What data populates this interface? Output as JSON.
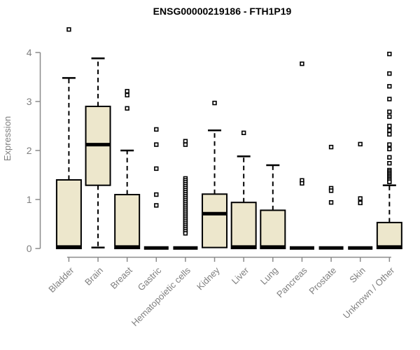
{
  "colors": {
    "box_fill": "#EDE7CC",
    "line": "#000000",
    "axis": "#8B8B8B",
    "muted_text": "#7F7F7F",
    "title_text": "#000000",
    "background": "#FFFFFF"
  },
  "chart_data": {
    "type": "boxplot",
    "title": "ENSG00000219186 - FTH1P19",
    "ylabel": "Expression",
    "xlabel": "",
    "ylim": [
      0,
      4
    ],
    "yticks": [
      0,
      1,
      2,
      3,
      4
    ],
    "grid": false,
    "legend": false,
    "categories": [
      "Bladder",
      "Brain",
      "Breast",
      "Gastric",
      "Hematopoietic cells",
      "Kidney",
      "Liver",
      "Lung",
      "Pancreas",
      "Prostate",
      "Skin",
      "Unknown / Other"
    ],
    "series": [
      {
        "name": "Bladder",
        "whisker_low": 0,
        "q1": 0,
        "median": 0.03,
        "q3": 1.4,
        "whisker_high": 3.48,
        "outliers": [
          4.47
        ]
      },
      {
        "name": "Brain",
        "whisker_low": 0.02,
        "q1": 1.29,
        "median": 2.12,
        "q3": 2.9,
        "whisker_high": 3.88,
        "outliers": []
      },
      {
        "name": "Breast",
        "whisker_low": 0,
        "q1": 0,
        "median": 0.03,
        "q3": 1.1,
        "whisker_high": 2.0,
        "outliers": [
          3.21,
          3.13,
          2.86
        ]
      },
      {
        "name": "Gastric",
        "whisker_low": 0,
        "q1": 0,
        "median": 0.01,
        "q3": 0,
        "whisker_high": 0,
        "outliers": [
          2.43,
          2.12,
          1.63,
          1.1,
          0.88
        ]
      },
      {
        "name": "Hematopoietic cells",
        "whisker_low": 0,
        "q1": 0,
        "median": 0.01,
        "q3": 0,
        "whisker_high": 0,
        "outliers": [
          2.19,
          2.12,
          1.43,
          1.39,
          1.35,
          1.31,
          1.27,
          1.23,
          1.19,
          1.15,
          1.11,
          1.07,
          1.03,
          0.99,
          0.95,
          0.91,
          0.87,
          0.83,
          0.79,
          0.75,
          0.71,
          0.67,
          0.63,
          0.59,
          0.55,
          0.51,
          0.47,
          0.43,
          0.39,
          0.35,
          0.31
        ]
      },
      {
        "name": "Kidney",
        "whisker_low": 0.02,
        "q1": 0.02,
        "median": 0.71,
        "q3": 1.11,
        "whisker_high": 2.41,
        "outliers": [
          2.97
        ]
      },
      {
        "name": "Liver",
        "whisker_low": 0,
        "q1": 0,
        "median": 0.03,
        "q3": 0.94,
        "whisker_high": 1.88,
        "outliers": [
          2.36
        ]
      },
      {
        "name": "Lung",
        "whisker_low": 0,
        "q1": 0,
        "median": 0.03,
        "q3": 0.78,
        "whisker_high": 1.7,
        "outliers": []
      },
      {
        "name": "Pancreas",
        "whisker_low": 0,
        "q1": 0,
        "median": 0.01,
        "q3": 0,
        "whisker_high": 0,
        "outliers": [
          3.77,
          1.39,
          1.33
        ]
      },
      {
        "name": "Prostate",
        "whisker_low": 0,
        "q1": 0,
        "median": 0.01,
        "q3": 0,
        "whisker_high": 0,
        "outliers": [
          2.07,
          1.23,
          1.18,
          0.94
        ]
      },
      {
        "name": "Skin",
        "whisker_low": 0,
        "q1": 0,
        "median": 0.01,
        "q3": 0,
        "whisker_high": 0,
        "outliers": [
          2.13,
          1.02,
          0.93
        ]
      },
      {
        "name": "Unknown / Other",
        "whisker_low": 0,
        "q1": 0,
        "median": 0.03,
        "q3": 0.53,
        "whisker_high": 1.29,
        "outliers": [
          3.97,
          3.57,
          3.31,
          3.05,
          2.79,
          2.69,
          2.5,
          2.41,
          2.33,
          2.12,
          2.03,
          1.86,
          1.74,
          1.6,
          1.57,
          1.54,
          1.51,
          1.48,
          1.45,
          1.42,
          1.39,
          1.36
        ]
      }
    ]
  }
}
